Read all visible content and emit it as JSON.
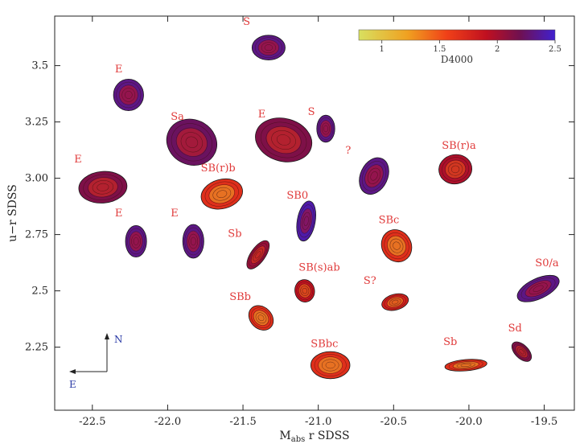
{
  "chart_data": {
    "type": "scatter",
    "title": "",
    "xlabel": "M",
    "xlabel_sub": "abs",
    "xlabel_suffix": " r SDSS",
    "ylabel": "u−r SDSS",
    "xlim": [
      -22.75,
      -19.3
    ],
    "ylim": [
      1.97,
      3.72
    ],
    "xticks": [
      -22.5,
      -22.0,
      -21.5,
      -21.0,
      -20.5,
      -20.0,
      -19.5
    ],
    "xtick_labels": [
      "-22.5",
      "-22.0",
      "-21.5",
      "-21.0",
      "-20.5",
      "-20.0",
      "-19.5"
    ],
    "yticks": [
      2.25,
      2.5,
      2.75,
      3.0,
      3.25,
      3.5
    ],
    "ytick_labels": [
      "2.25",
      "2.5",
      "2.75",
      "3.00",
      "3.25",
      "3.5"
    ],
    "grid": false,
    "colorbar": {
      "label": "D4000",
      "range": [
        0.8,
        2.5
      ],
      "ticks": [
        1,
        1.5,
        2,
        2.5
      ],
      "tick_labels": [
        "1",
        "1.5",
        "2",
        "2.5"
      ],
      "colors": [
        "#d8e060",
        "#f0a020",
        "#f04018",
        "#c01020",
        "#701050",
        "#4020d0"
      ]
    },
    "compass": {
      "north": "N",
      "east": "E",
      "color": "#2a3aa6"
    },
    "galaxies": [
      {
        "label": "S",
        "x": -21.33,
        "y": 3.58,
        "d4000": 2.3,
        "rx": 0.11,
        "ry": 0.055,
        "angle": 0,
        "label_x": -21.5,
        "label_y": 3.68
      },
      {
        "label": "E",
        "x": -22.26,
        "y": 3.37,
        "d4000": 2.3,
        "rx": 0.1,
        "ry": 0.07,
        "angle": 0,
        "label_x": -22.35,
        "label_y": 3.47
      },
      {
        "label": "Sa",
        "x": -21.84,
        "y": 3.16,
        "d4000": 2.2,
        "rx": 0.17,
        "ry": 0.1,
        "angle": 25,
        "label_x": -21.98,
        "label_y": 3.26
      },
      {
        "label": "E",
        "x": -21.23,
        "y": 3.17,
        "d4000": 2.1,
        "rx": 0.19,
        "ry": 0.095,
        "angle": 15,
        "label_x": -21.4,
        "label_y": 3.27
      },
      {
        "label": "S",
        "x": -20.95,
        "y": 3.22,
        "d4000": 2.3,
        "rx": 0.06,
        "ry": 0.06,
        "angle": 0,
        "label_x": -21.07,
        "label_y": 3.28
      },
      {
        "label": "E",
        "x": -22.43,
        "y": 2.96,
        "d4000": 2.1,
        "rx": 0.16,
        "ry": 0.07,
        "angle": -5,
        "label_x": -22.62,
        "label_y": 3.07
      },
      {
        "label": "SB(r)b",
        "x": -21.64,
        "y": 2.93,
        "d4000": 1.6,
        "rx": 0.14,
        "ry": 0.065,
        "angle": -15,
        "label_x": -21.78,
        "label_y": 3.03
      },
      {
        "label": "?",
        "x": -20.63,
        "y": 3.01,
        "d4000": 2.3,
        "rx": 0.09,
        "ry": 0.085,
        "angle": 25,
        "label_x": -20.82,
        "label_y": 3.11
      },
      {
        "label": "SB(r)a",
        "x": -20.09,
        "y": 3.04,
        "d4000": 1.9,
        "rx": 0.11,
        "ry": 0.065,
        "angle": -10,
        "label_x": -20.18,
        "label_y": 3.13
      },
      {
        "label": "SB0",
        "x": -21.08,
        "y": 2.81,
        "d4000": 2.4,
        "rx": 0.06,
        "ry": 0.09,
        "angle": 10,
        "label_x": -21.21,
        "label_y": 2.91
      },
      {
        "label": "E",
        "x": -22.21,
        "y": 2.72,
        "d4000": 2.3,
        "rx": 0.07,
        "ry": 0.07,
        "angle": 0,
        "label_x": -22.35,
        "label_y": 2.83
      },
      {
        "label": "E",
        "x": -21.83,
        "y": 2.72,
        "d4000": 2.3,
        "rx": 0.07,
        "ry": 0.075,
        "angle": 0,
        "label_x": -21.98,
        "label_y": 2.83
      },
      {
        "label": "Sb",
        "x": -21.4,
        "y": 2.66,
        "d4000": 2.0,
        "rx": 0.11,
        "ry": 0.032,
        "angle": -55,
        "label_x": -21.6,
        "label_y": 2.74
      },
      {
        "label": "SBc",
        "x": -20.48,
        "y": 2.7,
        "d4000": 1.6,
        "rx": 0.11,
        "ry": 0.065,
        "angle": 60,
        "label_x": -20.6,
        "label_y": 2.8
      },
      {
        "label": "SB(s)ab",
        "x": -21.09,
        "y": 2.5,
        "d4000": 1.8,
        "rx": 0.065,
        "ry": 0.05,
        "angle": -10,
        "label_x": -21.13,
        "label_y": 2.59
      },
      {
        "label": "S0/a",
        "x": -19.54,
        "y": 2.51,
        "d4000": 2.3,
        "rx": 0.15,
        "ry": 0.045,
        "angle": -25,
        "label_x": -19.56,
        "label_y": 2.61
      },
      {
        "label": "S?",
        "x": -20.49,
        "y": 2.45,
        "d4000": 1.7,
        "rx": 0.09,
        "ry": 0.035,
        "angle": -15,
        "label_x": -20.7,
        "label_y": 2.53
      },
      {
        "label": "SBb",
        "x": -21.38,
        "y": 2.38,
        "d4000": 1.6,
        "rx": 0.09,
        "ry": 0.048,
        "angle": 45,
        "label_x": -21.59,
        "label_y": 2.46
      },
      {
        "label": "Sd",
        "x": -19.65,
        "y": 2.23,
        "d4000": 2.1,
        "rx": 0.08,
        "ry": 0.03,
        "angle": 45,
        "label_x": -19.74,
        "label_y": 2.32
      },
      {
        "label": "SBbc",
        "x": -20.92,
        "y": 2.17,
        "d4000": 1.6,
        "rx": 0.13,
        "ry": 0.06,
        "angle": 0,
        "label_x": -21.05,
        "label_y": 2.25
      },
      {
        "label": "Sb",
        "x": -20.02,
        "y": 2.17,
        "d4000": 1.6,
        "rx": 0.14,
        "ry": 0.025,
        "angle": -5,
        "label_x": -20.17,
        "label_y": 2.26
      }
    ]
  }
}
